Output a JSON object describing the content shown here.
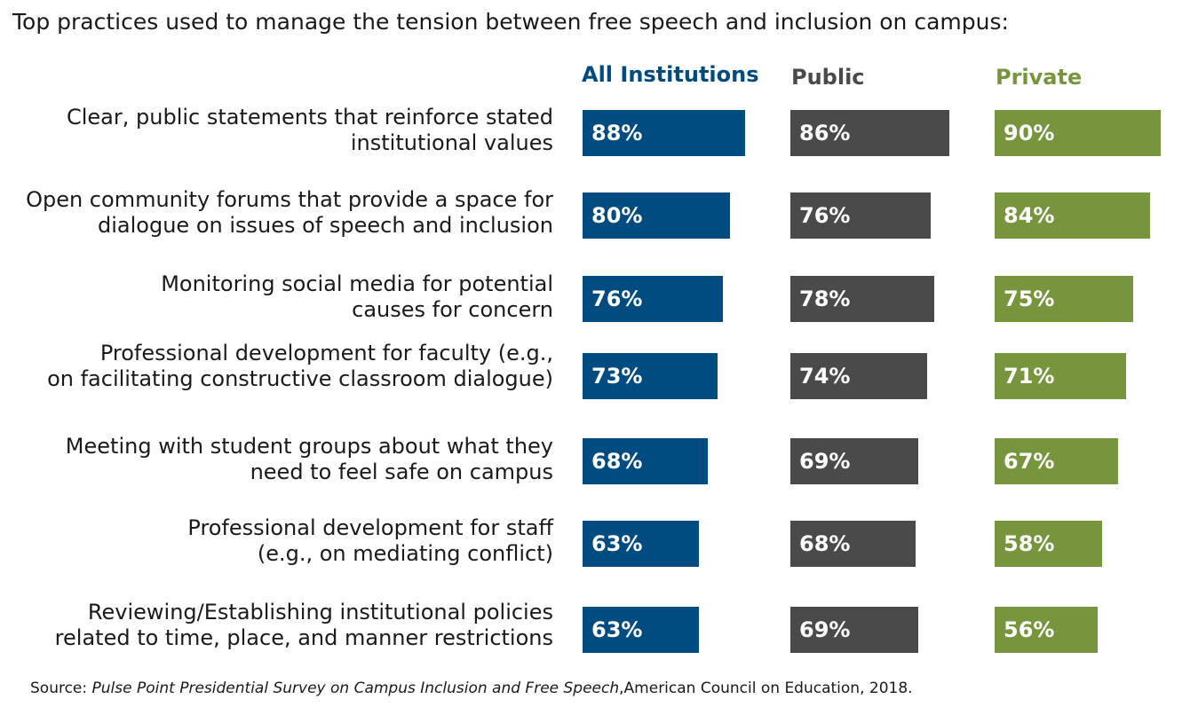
{
  "title": "Top practices used to manage the tension between free speech and inclusion on campus:",
  "source": {
    "prefix": "Source: ",
    "survey": "Pulse Point Presidential Survey on Campus Inclusion and Free Speech",
    "suffix": ",American Council on Education, 2018."
  },
  "colors": {
    "all": "#004b80",
    "public": "#4a4a4a",
    "private": "#76953c"
  },
  "chart_data": {
    "type": "bar",
    "orientation": "horizontal",
    "categories": [
      [
        "Clear, public statements that reinforce stated",
        "institutional values"
      ],
      [
        "Open community forums that provide a space for",
        "dialogue on issues of speech and inclusion"
      ],
      [
        "Monitoring social media for potential",
        "causes for concern"
      ],
      [
        "Professional development for faculty (e.g.,",
        "on facilitating constructive classroom dialogue)"
      ],
      [
        "Meeting with student groups about what they",
        "need to feel safe on campus"
      ],
      [
        "Professional development for staff",
        "(e.g., on mediating conflict)"
      ],
      [
        "Reviewing/Establishing institutional policies",
        "related to time, place, and manner restrictions"
      ]
    ],
    "series": [
      {
        "name": "All Institutions",
        "values": [
          88,
          80,
          76,
          73,
          68,
          63,
          63
        ],
        "labels": [
          "88%",
          "80%",
          "76%",
          "73%",
          "68%",
          "63%",
          "63%"
        ]
      },
      {
        "name": "Public",
        "values": [
          86,
          76,
          78,
          74,
          69,
          68,
          69
        ],
        "labels": [
          "86%",
          "76%",
          "78%",
          "74%",
          "69%",
          "68%",
          "69%"
        ]
      },
      {
        "name": "Private",
        "values": [
          90,
          84,
          75,
          71,
          67,
          58,
          56
        ],
        "labels": [
          "90%",
          "84%",
          "75%",
          "71%",
          "67%",
          "58%",
          "56%"
        ]
      }
    ],
    "unit": "%"
  }
}
